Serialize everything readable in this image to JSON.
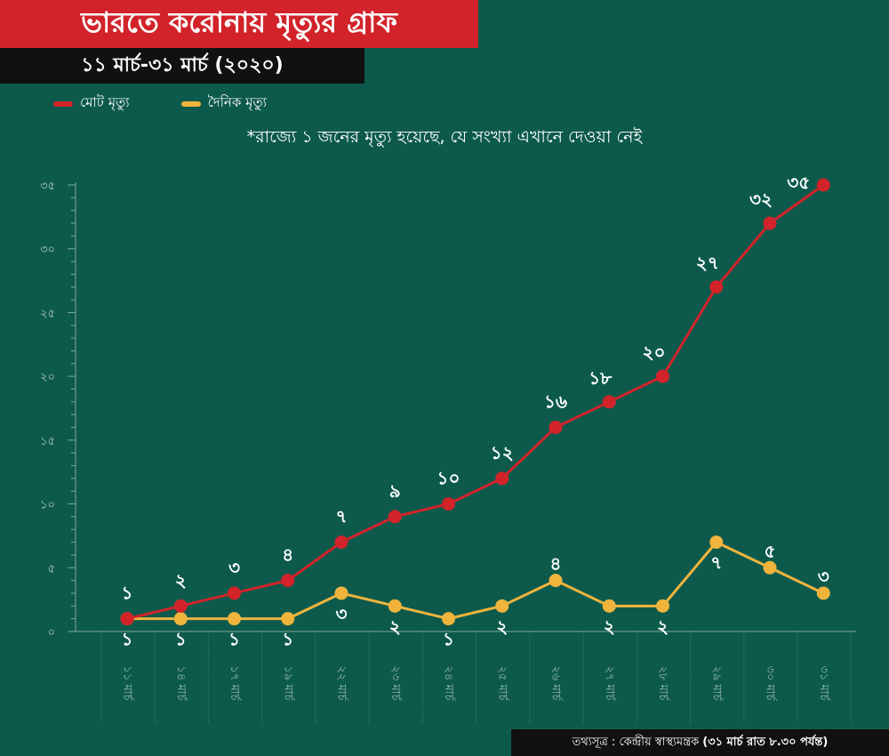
{
  "header": {
    "title": "ভারতে করোনায় মৃত্যুর গ্রাফ",
    "subtitle": "১১ মার্চ-৩১ মার্চ (২০২০)"
  },
  "legend": [
    {
      "label": "মোট মৃত্যু",
      "color": "#d2232a"
    },
    {
      "label": "দৈনিক মৃত্যু",
      "color": "#f0b43c"
    }
  ],
  "note": "*রাজ্যে ১ জনের মৃত্যু হয়েছে, যে সংখ্যা এখানে দেওয়া নেই",
  "source": {
    "prefix": "তথ্যসূত্র : কেন্দ্রীয় স্বাস্থ্যমন্ত্রক",
    "bold": "(৩১ মার্চ রাত ৮.৩০ পর্যন্ত)"
  },
  "chart_data": {
    "type": "line",
    "categories": [
      "১১ মার্চ",
      "১৪ মার্চ",
      "১৭ মার্চ",
      "১৯ মার্চ",
      "২২ মার্চ",
      "২৩ মার্চ",
      "২৪ মার্চ",
      "২৫ মার্চ",
      "২৬ মার্চ",
      "২৭ মার্চ",
      "২৮ মার্চ",
      "২৯ মার্চ",
      "৩০ মার্চ",
      "৩১ মার্চ"
    ],
    "series": [
      {
        "name": "মোট মৃত্যু",
        "color": "#d2232a",
        "values": [
          1,
          2,
          3,
          4,
          7,
          9,
          10,
          12,
          16,
          18,
          20,
          27,
          32,
          35
        ],
        "labels": [
          "১",
          "২",
          "৩",
          "৪",
          "৭",
          "৯",
          "১০",
          "১২",
          "১৬",
          "১৮",
          "২০",
          "২৭",
          "৩২",
          "৩৫"
        ]
      },
      {
        "name": "দৈনিক মৃত্যু",
        "color": "#f0b43c",
        "values": [
          1,
          1,
          1,
          1,
          3,
          2,
          1,
          2,
          4,
          2,
          2,
          7,
          5,
          3
        ],
        "labels": [
          "১",
          "১",
          "১",
          "১",
          "৩",
          "২",
          "১",
          "২",
          "৪",
          "২",
          "২",
          "৭",
          "৫",
          "৩"
        ]
      }
    ],
    "yticks": [
      0,
      5,
      10,
      15,
      20,
      25,
      30,
      35
    ],
    "ytick_labels": [
      "০",
      "৫",
      "১০",
      "১৫",
      "২০",
      "২৫",
      "৩০",
      "৩৫"
    ],
    "ylim": [
      0,
      35
    ]
  }
}
